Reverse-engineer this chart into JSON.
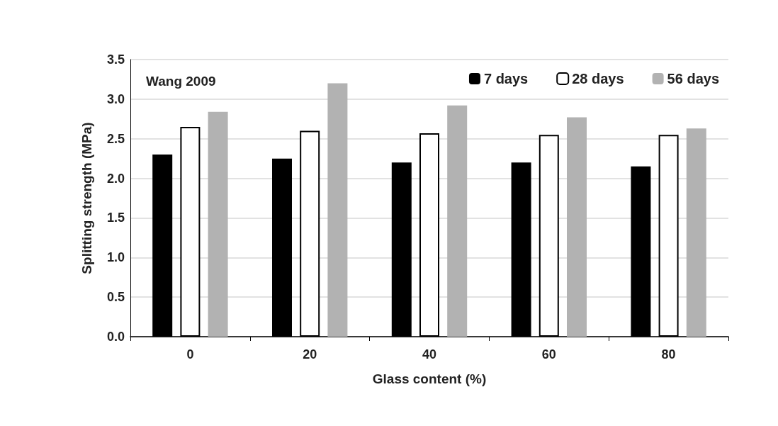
{
  "chart_data": {
    "type": "bar",
    "xlabel": "Glass content (%)",
    "ylabel": "Splitting strength (MPa)",
    "annotations": [
      "Wang 2009"
    ],
    "categories": [
      "0",
      "20",
      "40",
      "60",
      "80"
    ],
    "series": [
      {
        "name": "7 days",
        "color": "#000000",
        "values": [
          2.3,
          2.25,
          2.2,
          2.2,
          2.15
        ]
      },
      {
        "name": "28 days",
        "color": "#ffffff",
        "values": [
          2.65,
          2.6,
          2.57,
          2.55,
          2.55
        ]
      },
      {
        "name": "56 days",
        "color": "#b2b2b2",
        "values": [
          2.84,
          3.2,
          2.92,
          2.77,
          2.63
        ]
      }
    ],
    "ylim": [
      0,
      3.5
    ],
    "yticks": [
      {
        "value": 0,
        "label": "0.0"
      },
      0.5,
      {
        "value": 1,
        "label": "1.0"
      },
      1.5,
      {
        "value": 2,
        "label": "2.0"
      },
      2.5,
      {
        "value": 3,
        "label": "3.0"
      },
      3.5
    ],
    "grid": "y",
    "legend": "top right"
  }
}
